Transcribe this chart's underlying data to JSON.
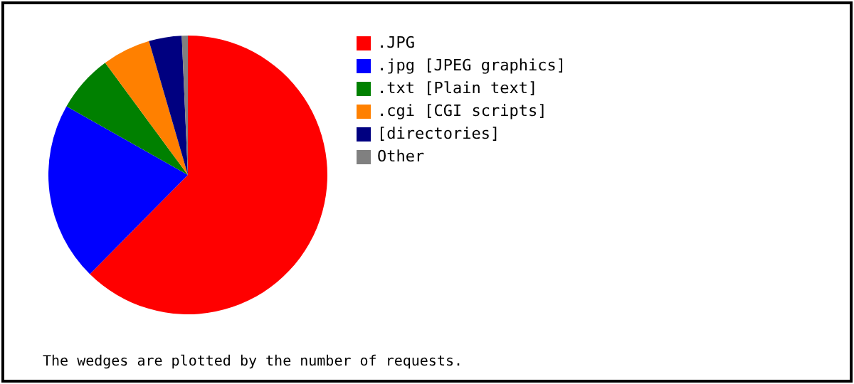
{
  "chart_data": {
    "type": "pie",
    "categories": [
      ".JPG",
      ".jpg  [JPEG graphics]",
      ".txt  [Plain text]",
      ".cgi  [CGI scripts]",
      "[directories]",
      "Other"
    ],
    "values": [
      62.4,
      20.8,
      6.7,
      5.6,
      3.8,
      0.7
    ],
    "colors": [
      "#ff0000",
      "#0000ff",
      "#008000",
      "#ff8000",
      "#000080",
      "#808080"
    ],
    "legend": "right",
    "annotations": [
      "The wedges are plotted by the number of requests."
    ]
  }
}
